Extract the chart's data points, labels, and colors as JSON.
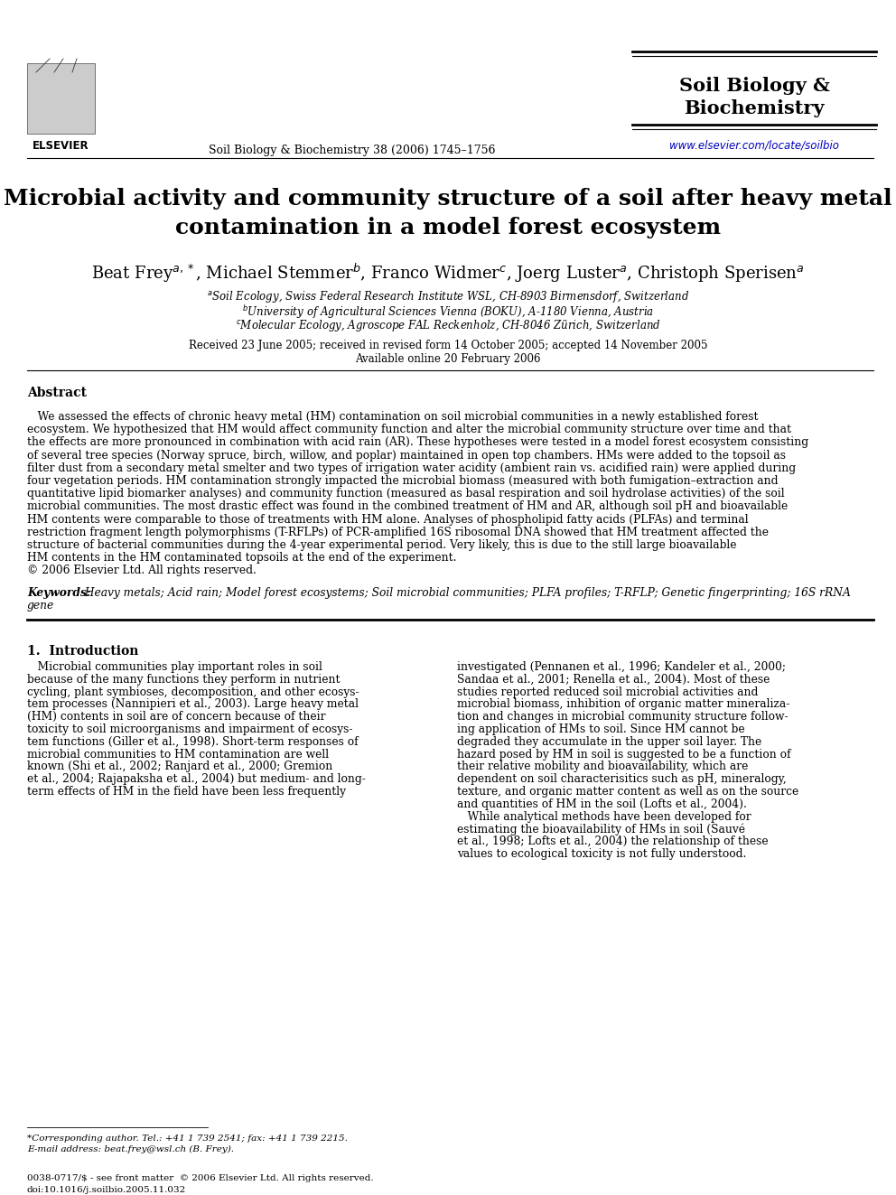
{
  "bg_color": "#ffffff",
  "journal_name_line1": "Soil Biology &",
  "journal_name_line2": "Biochemistry",
  "journal_ref": "Soil Biology & Biochemistry 38 (2006) 1745–1756",
  "journal_url": "www.elsevier.com/locate/soilbio",
  "title_line1": "Microbial activity and community structure of a soil after heavy metal",
  "title_line2": "contamination in a model forest ecosystem",
  "authors": "Beat Frey$^{a,*}$, Michael Stemmer$^{b}$, Franco Widmer$^{c}$, Joerg Luster$^{a}$, Christoph Sperisen$^{a}$",
  "affil_a": "$^{a}$Soil Ecology, Swiss Federal Research Institute WSL, CH-8903 Birmensdorf, Switzerland",
  "affil_b": "$^{b}$University of Agricultural Sciences Vienna (BOKU), A-1180 Vienna, Austria",
  "affil_c": "$^{c}$Molecular Ecology, Agroscope FAL Reckenholz, CH-8046 Zürich, Switzerland",
  "received": "Received 23 June 2005; received in revised form 14 October 2005; accepted 14 November 2005",
  "available": "Available online 20 February 2006",
  "abstract_label": "Abstract",
  "abstract_lines": [
    "   We assessed the effects of chronic heavy metal (HM) contamination on soil microbial communities in a newly established forest",
    "ecosystem. We hypothesized that HM would affect community function and alter the microbial community structure over time and that",
    "the effects are more pronounced in combination with acid rain (AR). These hypotheses were tested in a model forest ecosystem consisting",
    "of several tree species (Norway spruce, birch, willow, and poplar) maintained in open top chambers. HMs were added to the topsoil as",
    "filter dust from a secondary metal smelter and two types of irrigation water acidity (ambient rain vs. acidified rain) were applied during",
    "four vegetation periods. HM contamination strongly impacted the microbial biomass (measured with both fumigation–extraction and",
    "quantitative lipid biomarker analyses) and community function (measured as basal respiration and soil hydrolase activities) of the soil",
    "microbial communities. The most drastic effect was found in the combined treatment of HM and AR, although soil pH and bioavailable",
    "HM contents were comparable to those of treatments with HM alone. Analyses of phospholipid fatty acids (PLFAs) and terminal",
    "restriction fragment length polymorphisms (T-RFLPs) of PCR-amplified 16S ribosomal DNA showed that HM treatment affected the",
    "structure of bacterial communities during the 4-year experimental period. Very likely, this is due to the still large bioavailable",
    "HM contents in the HM contaminated topsoils at the end of the experiment.",
    "© 2006 Elsevier Ltd. All rights reserved."
  ],
  "keywords_bold": "Keywords:",
  "keywords_rest": " Heavy metals; Acid rain; Model forest ecosystems; Soil microbial communities; PLFA profiles; T-RFLP; Genetic fingerprinting; 16S rRNA",
  "keywords_line2": "gene",
  "section1_label": "1.  Introduction",
  "intro_col1_lines": [
    "   Microbial communities play important roles in soil",
    "because of the many functions they perform in nutrient",
    "cycling, plant symbioses, decomposition, and other ecosys-",
    "tem processes (Nannipieri et al., 2003). Large heavy metal",
    "(HM) contents in soil are of concern because of their",
    "toxicity to soil microorganisms and impairment of ecosys-",
    "tem functions (Giller et al., 1998). Short-term responses of",
    "microbial communities to HM contamination are well",
    "known (Shi et al., 2002; Ranjard et al., 2000; Gremion",
    "et al., 2004; Rajapaksha et al., 2004) but medium- and long-",
    "term effects of HM in the field have been less frequently"
  ],
  "intro_col2_lines": [
    "investigated (Pennanen et al., 1996; Kandeler et al., 2000;",
    "Sandaa et al., 2001; Renella et al., 2004). Most of these",
    "studies reported reduced soil microbial activities and",
    "microbial biomass, inhibition of organic matter mineraliza-",
    "tion and changes in microbial community structure follow-",
    "ing application of HMs to soil. Since HM cannot be",
    "degraded they accumulate in the upper soil layer. The",
    "hazard posed by HM in soil is suggested to be a function of",
    "their relative mobility and bioavailability, which are",
    "dependent on soil characterisitics such as pH, mineralogy,",
    "texture, and organic matter content as well as on the source",
    "and quantities of HM in the soil (Lofts et al., 2004).",
    "   While analytical methods have been developed for",
    "estimating the bioavailability of HMs in soil (Sauvé",
    "et al., 1998; Lofts et al., 2004) the relationship of these",
    "values to ecological toxicity is not fully understood."
  ],
  "footnote_star": "*Corresponding author. Tel.: +41 1 739 2541; fax: +41 1 739 2215.",
  "footnote_email": "E-mail address: beat.frey@wsl.ch (B. Frey).",
  "footer_issn": "0038-0717/$ - see front matter  © 2006 Elsevier Ltd. All rights reserved.",
  "footer_doi": "doi:10.1016/j.soilbio.2005.11.032"
}
